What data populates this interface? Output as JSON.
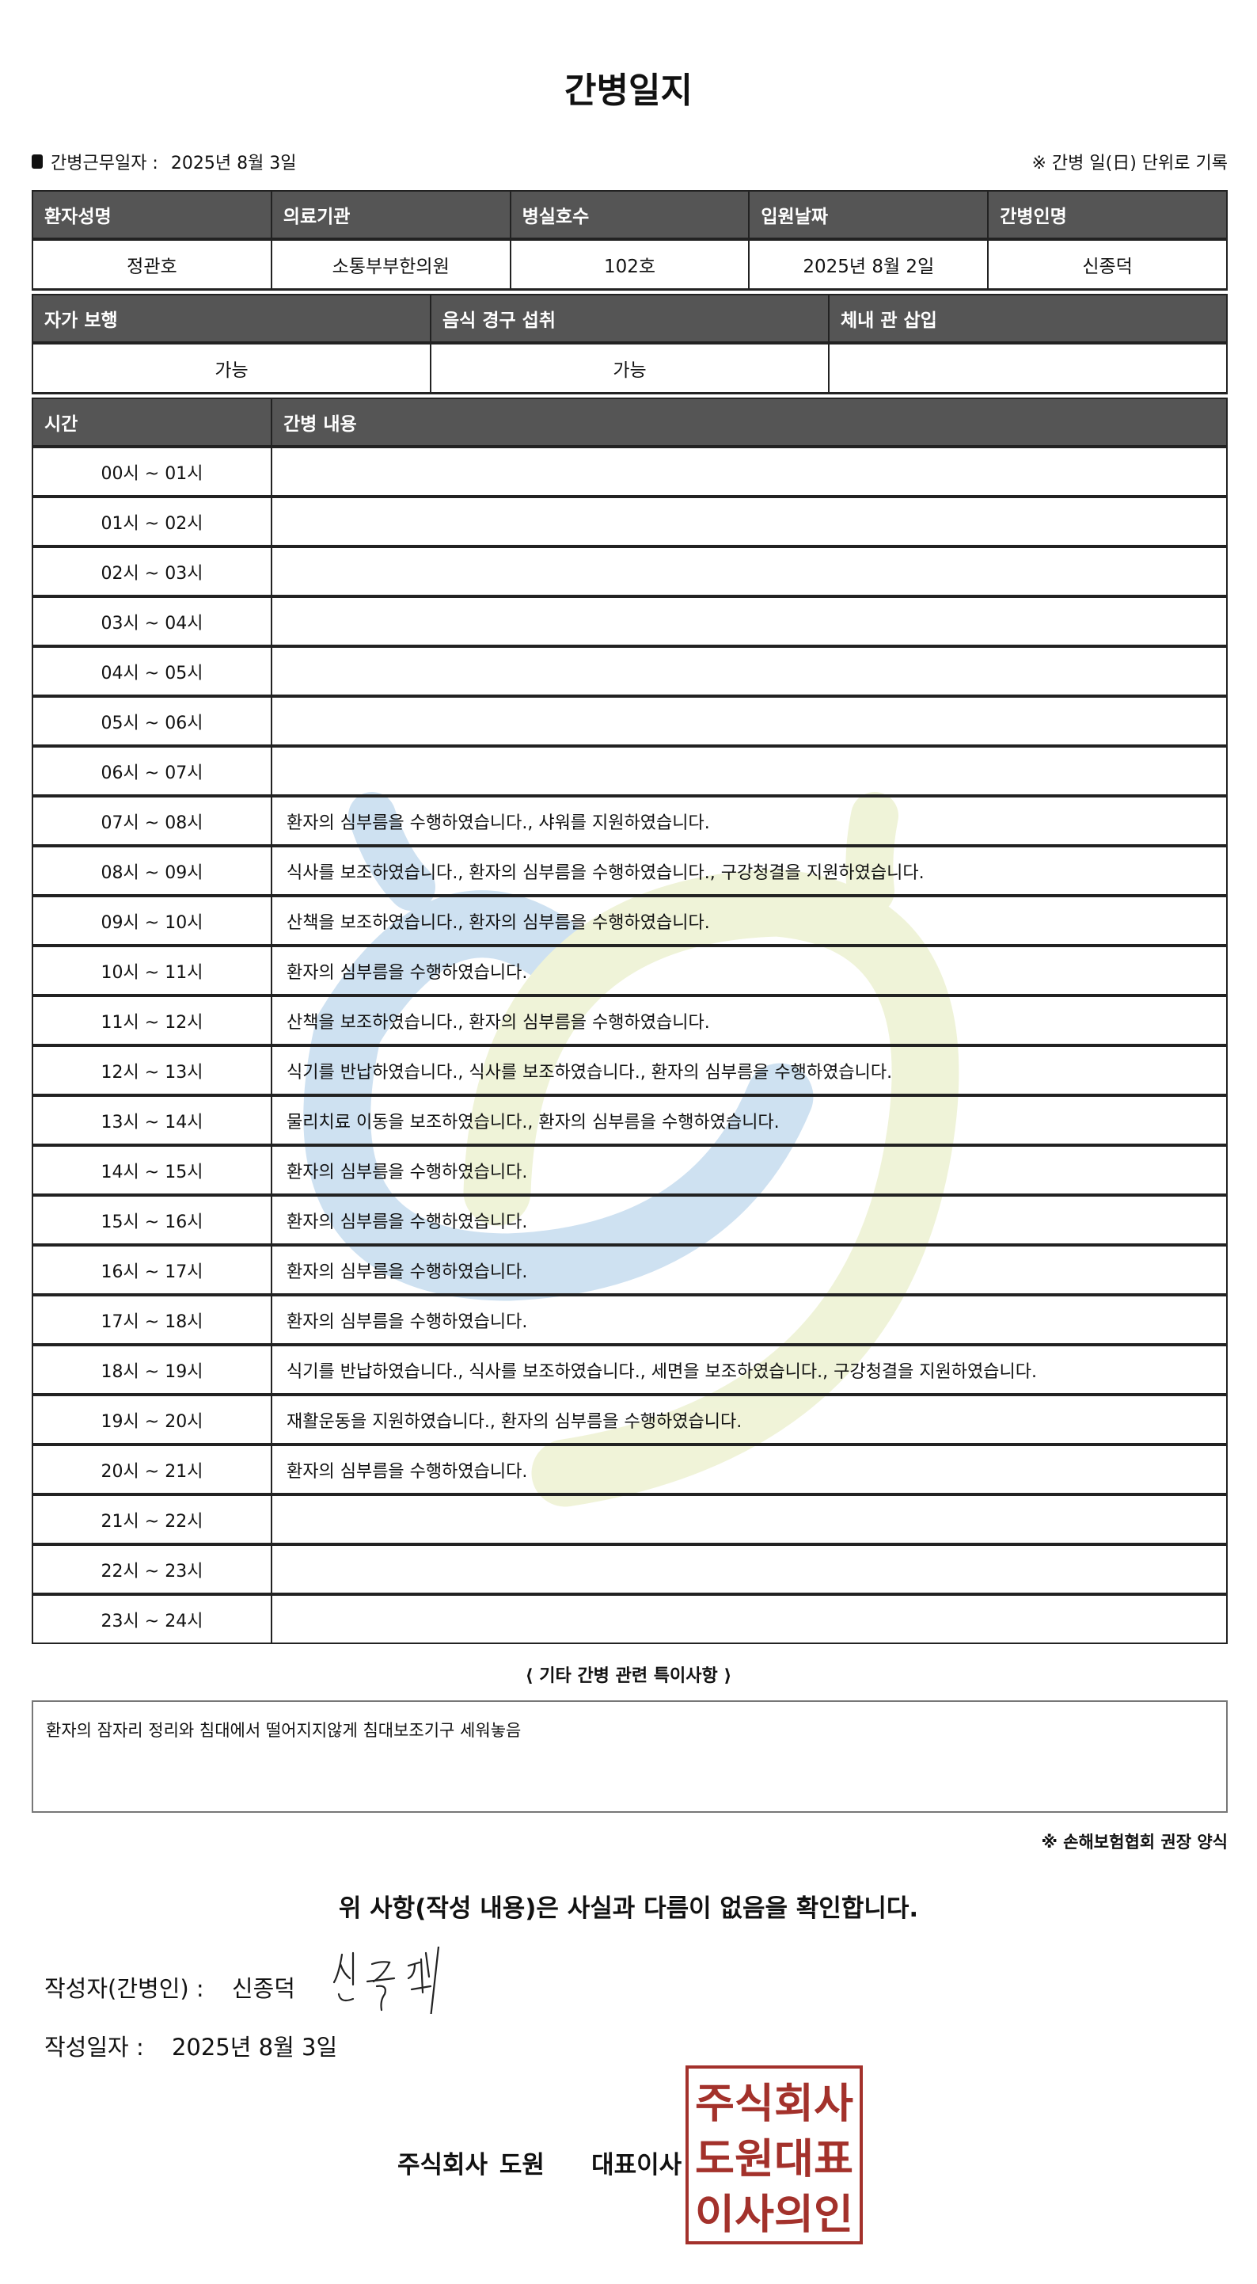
{
  "title": "간병일지",
  "info": {
    "work_date_label": "간병근무일자 :",
    "work_date": "2025년 8월 3일",
    "note": "※ 간병 일(日) 단위로 기록"
  },
  "patient_table": {
    "headers": [
      "환자성명",
      "의료기관",
      "병실호수",
      "입원날짜",
      "간병인명"
    ],
    "values": [
      "정관호",
      "소통부부한의원",
      "102호",
      "2025년 8월 2일",
      "신종덕"
    ]
  },
  "status_table": {
    "headers": [
      "자가 보행",
      "음식 경구 섭취",
      "체내 관 삽입"
    ],
    "values": [
      "가능",
      "가능",
      ""
    ]
  },
  "log_table": {
    "headers": [
      "시간",
      "간병 내용"
    ],
    "rows": [
      {
        "time": "00시 ~ 01시",
        "content": ""
      },
      {
        "time": "01시 ~ 02시",
        "content": ""
      },
      {
        "time": "02시 ~ 03시",
        "content": ""
      },
      {
        "time": "03시 ~ 04시",
        "content": ""
      },
      {
        "time": "04시 ~ 05시",
        "content": ""
      },
      {
        "time": "05시 ~ 06시",
        "content": ""
      },
      {
        "time": "06시 ~ 07시",
        "content": ""
      },
      {
        "time": "07시 ~ 08시",
        "content": "환자의 심부름을 수행하였습니다., 샤워를 지원하였습니다."
      },
      {
        "time": "08시 ~ 09시",
        "content": "식사를 보조하였습니다., 환자의 심부름을 수행하였습니다., 구강청결을 지원하였습니다."
      },
      {
        "time": "09시 ~ 10시",
        "content": "산책을 보조하였습니다., 환자의 심부름을 수행하였습니다."
      },
      {
        "time": "10시 ~ 11시",
        "content": "환자의 심부름을 수행하였습니다."
      },
      {
        "time": "11시 ~ 12시",
        "content": "산책을 보조하였습니다., 환자의 심부름을 수행하였습니다."
      },
      {
        "time": "12시 ~ 13시",
        "content": "식기를 반납하였습니다., 식사를 보조하였습니다., 환자의 심부름을 수행하였습니다."
      },
      {
        "time": "13시 ~ 14시",
        "content": "물리치료 이동을 보조하였습니다., 환자의 심부름을 수행하였습니다."
      },
      {
        "time": "14시 ~ 15시",
        "content": "환자의 심부름을 수행하였습니다."
      },
      {
        "time": "15시 ~ 16시",
        "content": "환자의 심부름을 수행하였습니다."
      },
      {
        "time": "16시 ~ 17시",
        "content": "환자의 심부름을 수행하였습니다."
      },
      {
        "time": "17시 ~ 18시",
        "content": "환자의 심부름을 수행하였습니다."
      },
      {
        "time": "18시 ~ 19시",
        "content": "식기를 반납하였습니다., 식사를 보조하였습니다., 세면을 보조하였습니다., 구강청결을 지원하였습니다."
      },
      {
        "time": "19시 ~ 20시",
        "content": "재활운동을 지원하였습니다., 환자의 심부름을 수행하였습니다."
      },
      {
        "time": "20시 ~ 21시",
        "content": "환자의 심부름을 수행하였습니다."
      },
      {
        "time": "21시 ~ 22시",
        "content": ""
      },
      {
        "time": "22시 ~ 23시",
        "content": ""
      },
      {
        "time": "23시 ~ 24시",
        "content": ""
      }
    ]
  },
  "notes": {
    "heading": "⟨ 기타 간병 관련 특이사항 ⟩",
    "text": "환자의 잠자리 정리와 침대에서 떨어지지않게 침대보조기구 세워놓음"
  },
  "source": "※ 손해보험협회 권장 양식",
  "confirm": "위 사항(작성 내용)은 사실과 다름이 없음을 확인합니다.",
  "writer": {
    "label": "작성자(간병인) :",
    "name": "신종덕"
  },
  "write_date": {
    "label": "작성일자 :",
    "value": "2025년 8월 3일"
  },
  "company": "주식회사 도원    대표이사",
  "stamp": {
    "text": [
      "주식회사",
      "도원대표",
      "이사의인"
    ],
    "color": "#a3312b"
  },
  "colors": {
    "header_bg": "#555555",
    "watermark_blue": "#c9def0",
    "watermark_green": "#eef2d4"
  }
}
